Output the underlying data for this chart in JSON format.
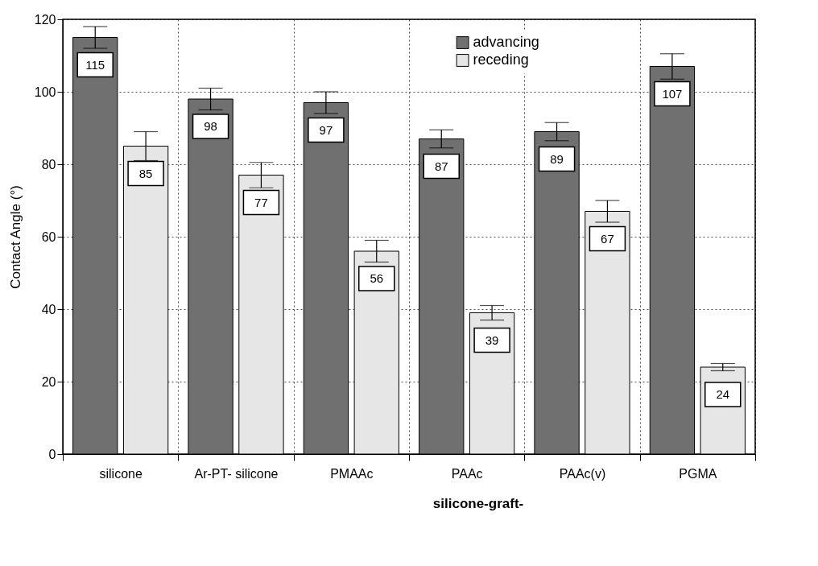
{
  "chart_data": {
    "type": "bar",
    "ylabel": "Contact Angle (°)",
    "categories": [
      "silicone",
      "Ar-PT-\nsilicone",
      "PMAAc",
      "PAAc",
      "PAAc(v)",
      "PGMA"
    ],
    "series": [
      {
        "name": "advancing",
        "color": "#707070",
        "values": [
          115,
          98,
          97,
          87,
          89,
          107
        ],
        "errors": [
          3,
          3,
          3,
          2.5,
          2.5,
          3.5
        ]
      },
      {
        "name": "receding",
        "color": "#e6e6e6",
        "values": [
          85,
          77,
          56,
          39,
          67,
          24
        ],
        "errors": [
          4,
          3.5,
          3,
          2,
          3,
          1
        ]
      }
    ],
    "ylim": [
      0,
      120
    ],
    "yticks": [
      0,
      20,
      40,
      60,
      80,
      100,
      120
    ],
    "grid": true,
    "legend": "top right",
    "data_labels": true,
    "annotations": [
      "silicone-graft-"
    ]
  }
}
